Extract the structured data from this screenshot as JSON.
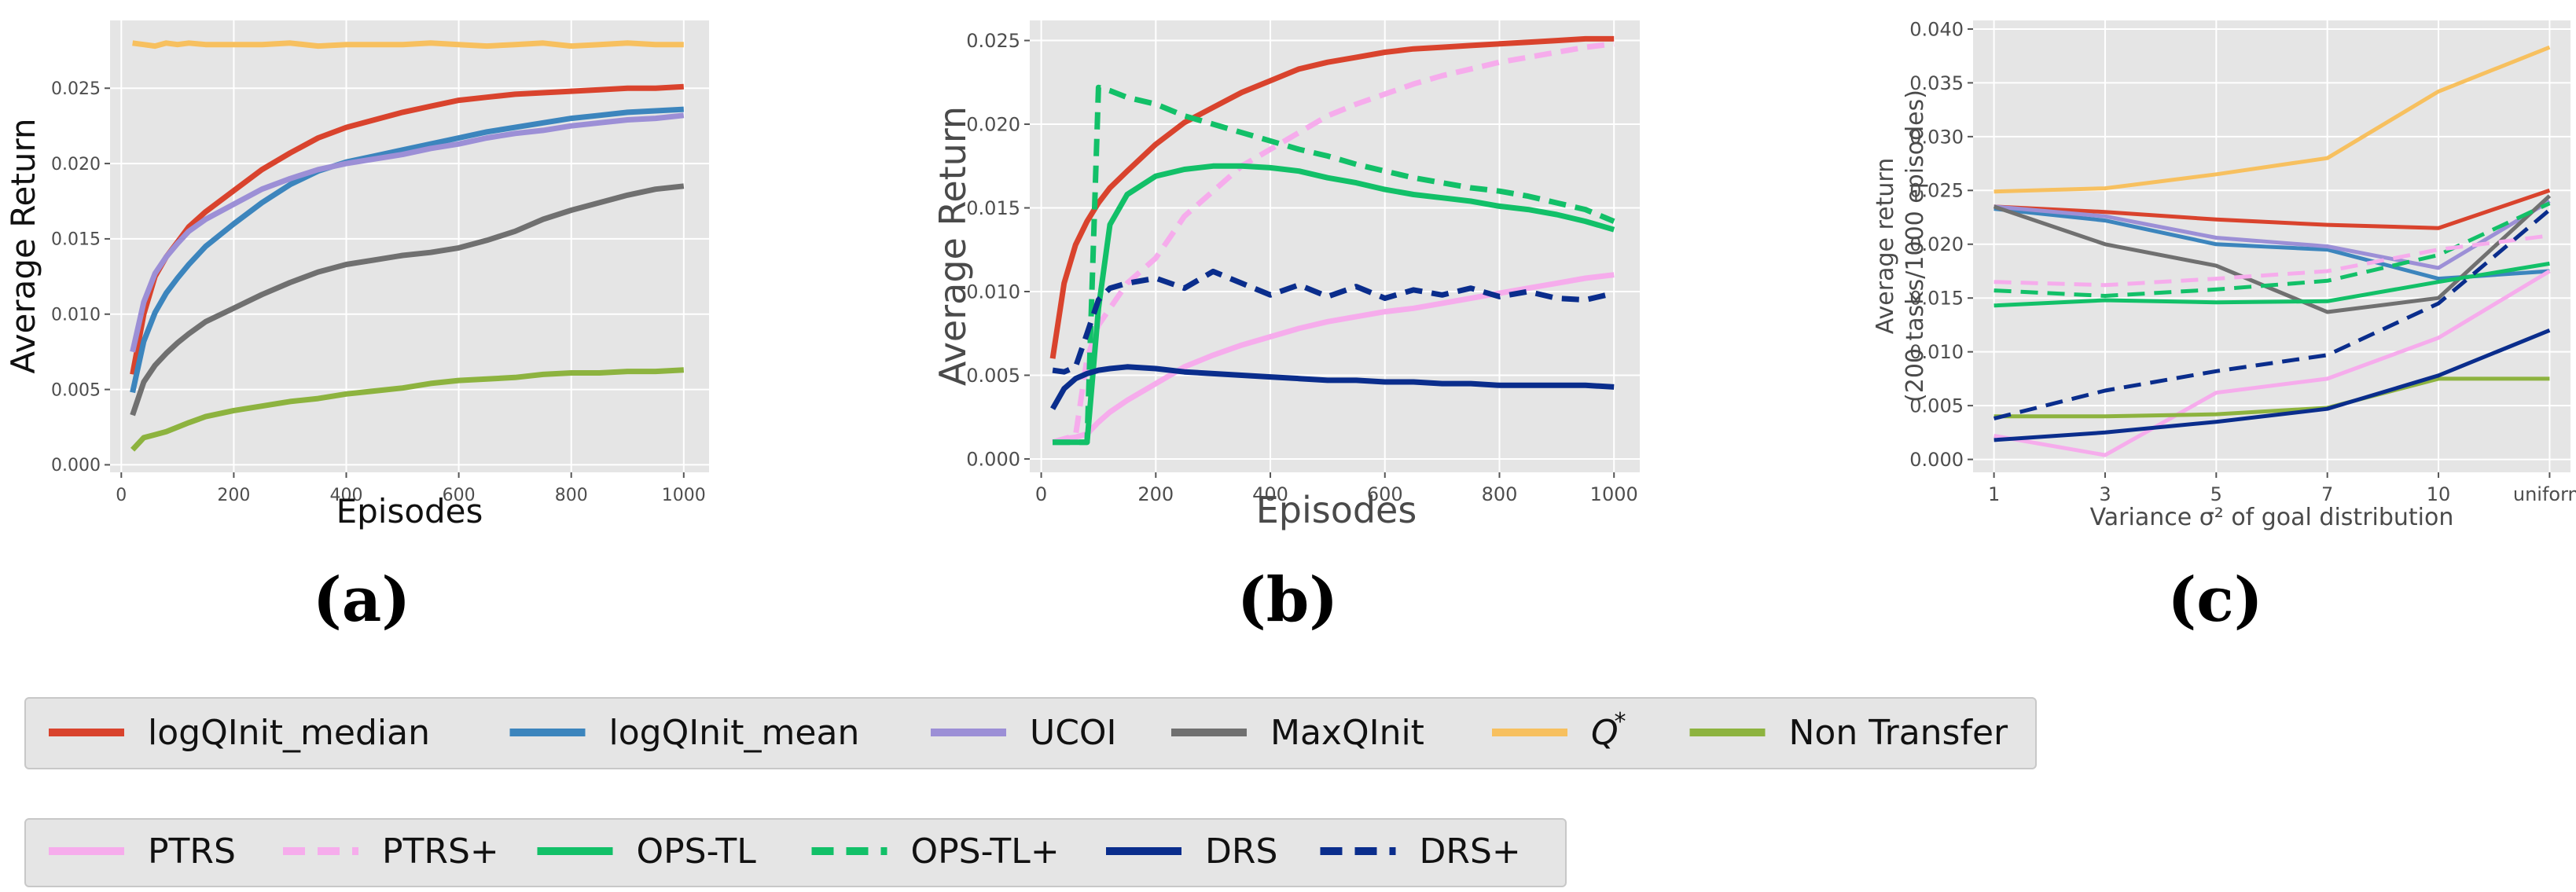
{
  "series_styles": {
    "logQInit_median": {
      "color": "#d9432d",
      "dash": false
    },
    "logQInit_mean": {
      "color": "#3c85bd",
      "dash": false
    },
    "UCOI": {
      "color": "#9c8fd6",
      "dash": false
    },
    "MaxQInit": {
      "color": "#707070",
      "dash": false
    },
    "Q*": {
      "color": "#f7c05f",
      "dash": false
    },
    "Non Transfer": {
      "color": "#8db33f",
      "dash": false
    },
    "PTRS": {
      "color": "#f6acec",
      "dash": false
    },
    "PTRS+": {
      "color": "#f6acec",
      "dash": true
    },
    "OPS-TL": {
      "color": "#12c068",
      "dash": false
    },
    "OPS-TL+": {
      "color": "#12c068",
      "dash": true
    },
    "DRS": {
      "color": "#0a2d8c",
      "dash": false
    },
    "DRS+": {
      "color": "#0a2d8c",
      "dash": true
    }
  },
  "legend1": [
    {
      "key": "logQInit_median",
      "label": "logQInit_median"
    },
    {
      "key": "logQInit_mean",
      "label": "logQInit_mean"
    },
    {
      "key": "UCOI",
      "label": "UCOI"
    },
    {
      "key": "MaxQInit",
      "label": "MaxQInit"
    },
    {
      "key": "Q*",
      "label": "Q",
      "sup": "*"
    },
    {
      "key": "Non Transfer",
      "label": "Non Transfer"
    }
  ],
  "legend2": [
    {
      "key": "PTRS",
      "label": "PTRS"
    },
    {
      "key": "PTRS+",
      "label": "PTRS+"
    },
    {
      "key": "OPS-TL",
      "label": "OPS-TL"
    },
    {
      "key": "OPS-TL+",
      "label": "OPS-TL+"
    },
    {
      "key": "DRS",
      "label": "DRS"
    },
    {
      "key": "DRS+",
      "label": "DRS+"
    }
  ],
  "chart_data": [
    {
      "type": "line",
      "panel": "(a)",
      "xlabel": "Episodes",
      "ylabel": "Average Return",
      "xlim": [
        -20,
        1045
      ],
      "ylim": [
        -0.0005,
        0.0295
      ],
      "xticks": [
        0,
        200,
        400,
        600,
        800,
        1000
      ],
      "yticks": [
        0.0,
        0.005,
        0.01,
        0.015,
        0.02,
        0.025
      ],
      "ytick_labels": [
        "0.000",
        "0.005",
        "0.010",
        "0.015",
        "0.020",
        "0.025"
      ],
      "x": [
        20,
        40,
        60,
        80,
        100,
        120,
        150,
        200,
        250,
        300,
        350,
        400,
        450,
        500,
        550,
        600,
        650,
        700,
        750,
        800,
        850,
        900,
        950,
        1000
      ],
      "series": [
        {
          "name": "logQInit_median",
          "values": [
            0.006,
            0.01,
            0.0125,
            0.0138,
            0.0148,
            0.0158,
            0.0168,
            0.0182,
            0.0196,
            0.0207,
            0.0217,
            0.0224,
            0.0229,
            0.0234,
            0.0238,
            0.0242,
            0.0244,
            0.0246,
            0.0247,
            0.0248,
            0.0249,
            0.025,
            0.025,
            0.0251
          ]
        },
        {
          "name": "logQInit_mean",
          "values": [
            0.0048,
            0.0082,
            0.0101,
            0.0114,
            0.0124,
            0.0133,
            0.0145,
            0.016,
            0.0174,
            0.0186,
            0.0195,
            0.0201,
            0.0205,
            0.0209,
            0.0213,
            0.0217,
            0.0221,
            0.0224,
            0.0227,
            0.023,
            0.0232,
            0.0234,
            0.0235,
            0.0236
          ]
        },
        {
          "name": "UCOI",
          "values": [
            0.0075,
            0.0108,
            0.0127,
            0.0138,
            0.0147,
            0.0155,
            0.0163,
            0.0173,
            0.0183,
            0.019,
            0.0196,
            0.02,
            0.0203,
            0.0206,
            0.021,
            0.0213,
            0.0217,
            0.022,
            0.0222,
            0.0225,
            0.0227,
            0.0229,
            0.023,
            0.0232
          ]
        },
        {
          "name": "MaxQInit",
          "values": [
            0.0033,
            0.0055,
            0.0066,
            0.0074,
            0.0081,
            0.0087,
            0.0095,
            0.0104,
            0.0113,
            0.0121,
            0.0128,
            0.0133,
            0.0136,
            0.0139,
            0.0141,
            0.0144,
            0.0149,
            0.0155,
            0.0163,
            0.0169,
            0.0174,
            0.0179,
            0.0183,
            0.0185
          ]
        },
        {
          "name": "Q*",
          "values": [
            0.028,
            0.0279,
            0.0278,
            0.028,
            0.0279,
            0.028,
            0.0279,
            0.0279,
            0.0279,
            0.028,
            0.0278,
            0.0279,
            0.0279,
            0.0279,
            0.028,
            0.0279,
            0.0278,
            0.0279,
            0.028,
            0.0278,
            0.0279,
            0.028,
            0.0279,
            0.0279
          ]
        },
        {
          "name": "Non Transfer",
          "values": [
            0.001,
            0.0018,
            0.002,
            0.0022,
            0.0025,
            0.0028,
            0.0032,
            0.0036,
            0.0039,
            0.0042,
            0.0044,
            0.0047,
            0.0049,
            0.0051,
            0.0054,
            0.0056,
            0.0057,
            0.0058,
            0.006,
            0.0061,
            0.0061,
            0.0062,
            0.0062,
            0.0063
          ]
        }
      ]
    },
    {
      "type": "line",
      "panel": "(b)",
      "xlabel": "Episodes",
      "ylabel": "Average Return",
      "xlim": [
        -20,
        1045
      ],
      "ylim": [
        -0.0008,
        0.0262
      ],
      "xticks": [
        0,
        200,
        400,
        600,
        800,
        1000
      ],
      "yticks": [
        0.0,
        0.005,
        0.01,
        0.015,
        0.02,
        0.025
      ],
      "ytick_labels": [
        "0.000",
        "0.005",
        "0.010",
        "0.015",
        "0.020",
        "0.025"
      ],
      "x": [
        20,
        40,
        60,
        80,
        100,
        120,
        150,
        200,
        250,
        300,
        350,
        400,
        450,
        500,
        550,
        600,
        650,
        700,
        750,
        800,
        850,
        900,
        950,
        1000
      ],
      "series": [
        {
          "name": "logQInit_median",
          "values": [
            0.006,
            0.0105,
            0.0128,
            0.0142,
            0.0153,
            0.0162,
            0.0172,
            0.0188,
            0.0201,
            0.021,
            0.0219,
            0.0226,
            0.0233,
            0.0237,
            0.024,
            0.0243,
            0.0245,
            0.0246,
            0.0247,
            0.0248,
            0.0249,
            0.025,
            0.0251,
            0.0251
          ]
        },
        {
          "name": "PTRS",
          "values": [
            0.001,
            0.0012,
            0.0013,
            0.0015,
            0.0022,
            0.0028,
            0.0035,
            0.0045,
            0.0055,
            0.0062,
            0.0068,
            0.0073,
            0.0078,
            0.0082,
            0.0085,
            0.0088,
            0.009,
            0.0093,
            0.0096,
            0.0099,
            0.0102,
            0.0105,
            0.0108,
            0.011
          ]
        },
        {
          "name": "PTRS+",
          "values": [
            0.001,
            0.0012,
            0.0014,
            0.006,
            0.008,
            0.009,
            0.0105,
            0.012,
            0.0145,
            0.016,
            0.0175,
            0.0185,
            0.0195,
            0.0205,
            0.0212,
            0.0218,
            0.0224,
            0.0229,
            0.0233,
            0.0237,
            0.024,
            0.0243,
            0.0246,
            0.0248
          ]
        },
        {
          "name": "OPS-TL",
          "values": [
            0.001,
            0.001,
            0.001,
            0.001,
            0.009,
            0.014,
            0.0158,
            0.0169,
            0.0173,
            0.0175,
            0.0175,
            0.0174,
            0.0172,
            0.0168,
            0.0165,
            0.0161,
            0.0158,
            0.0156,
            0.0154,
            0.0151,
            0.0149,
            0.0146,
            0.0142,
            0.0137
          ]
        },
        {
          "name": "OPS-TL+",
          "values": [
            0.001,
            0.001,
            0.001,
            0.001,
            0.0222,
            0.022,
            0.0216,
            0.0212,
            0.0205,
            0.02,
            0.0195,
            0.019,
            0.0185,
            0.0181,
            0.0176,
            0.0172,
            0.0168,
            0.0165,
            0.0162,
            0.016,
            0.0157,
            0.0153,
            0.0149,
            0.0142
          ]
        },
        {
          "name": "DRS",
          "values": [
            0.003,
            0.0042,
            0.0048,
            0.0051,
            0.0053,
            0.0054,
            0.0055,
            0.0054,
            0.0052,
            0.0051,
            0.005,
            0.0049,
            0.0048,
            0.0047,
            0.0047,
            0.0046,
            0.0046,
            0.0045,
            0.0045,
            0.0044,
            0.0044,
            0.0044,
            0.0044,
            0.0043
          ]
        },
        {
          "name": "DRS+",
          "values": [
            0.0053,
            0.0052,
            0.0055,
            0.0075,
            0.0095,
            0.0102,
            0.0105,
            0.0108,
            0.0102,
            0.0112,
            0.0105,
            0.0098,
            0.0104,
            0.0097,
            0.0103,
            0.0096,
            0.0101,
            0.0098,
            0.0102,
            0.0097,
            0.01,
            0.0096,
            0.0095,
            0.0099
          ]
        }
      ]
    },
    {
      "type": "line",
      "panel": "(c)",
      "xlabel": "Variance σ² of goal distribution",
      "ylabel_line1": "Average return",
      "ylabel_line2": "(200 tasks/1000 episodes)",
      "categories": [
        "1",
        "3",
        "5",
        "7",
        "10",
        "uniform"
      ],
      "ylim": [
        -0.0012,
        0.0408
      ],
      "yticks": [
        0.0,
        0.005,
        0.01,
        0.015,
        0.02,
        0.025,
        0.03,
        0.035,
        0.04
      ],
      "ytick_labels": [
        "0.000",
        "0.005",
        "0.010",
        "0.015",
        "0.020",
        "0.025",
        "0.030",
        "0.035",
        "0.040"
      ],
      "series": [
        {
          "name": "Q*",
          "values": [
            0.0249,
            0.0252,
            0.0265,
            0.028,
            0.0342,
            0.0383
          ]
        },
        {
          "name": "logQInit_median",
          "values": [
            0.0235,
            0.023,
            0.0223,
            0.0218,
            0.0215,
            0.025
          ]
        },
        {
          "name": "logQInit_mean",
          "values": [
            0.0233,
            0.0222,
            0.02,
            0.0195,
            0.0168,
            0.0175
          ]
        },
        {
          "name": "UCOI",
          "values": [
            0.0235,
            0.0226,
            0.0206,
            0.0198,
            0.0178,
            0.024
          ]
        },
        {
          "name": "MaxQInit",
          "values": [
            0.0235,
            0.02,
            0.018,
            0.0137,
            0.015,
            0.0245
          ]
        },
        {
          "name": "OPS-TL",
          "values": [
            0.0143,
            0.0148,
            0.0146,
            0.0147,
            0.0165,
            0.0182
          ]
        },
        {
          "name": "OPS-TL+",
          "values": [
            0.0157,
            0.0152,
            0.0158,
            0.0166,
            0.019,
            0.0238
          ]
        },
        {
          "name": "PTRS",
          "values": [
            0.0022,
            0.0004,
            0.0062,
            0.0075,
            0.0113,
            0.0175
          ]
        },
        {
          "name": "PTRS+",
          "values": [
            0.0165,
            0.0162,
            0.0168,
            0.0175,
            0.0195,
            0.0208
          ]
        },
        {
          "name": "Non Transfer",
          "values": [
            0.004,
            0.004,
            0.0042,
            0.0048,
            0.0075,
            0.0075
          ]
        },
        {
          "name": "DRS",
          "values": [
            0.0018,
            0.0025,
            0.0035,
            0.0047,
            0.0078,
            0.012
          ]
        },
        {
          "name": "DRS+",
          "values": [
            0.0038,
            0.0064,
            0.0082,
            0.0097,
            0.0145,
            0.0232
          ]
        }
      ]
    }
  ]
}
